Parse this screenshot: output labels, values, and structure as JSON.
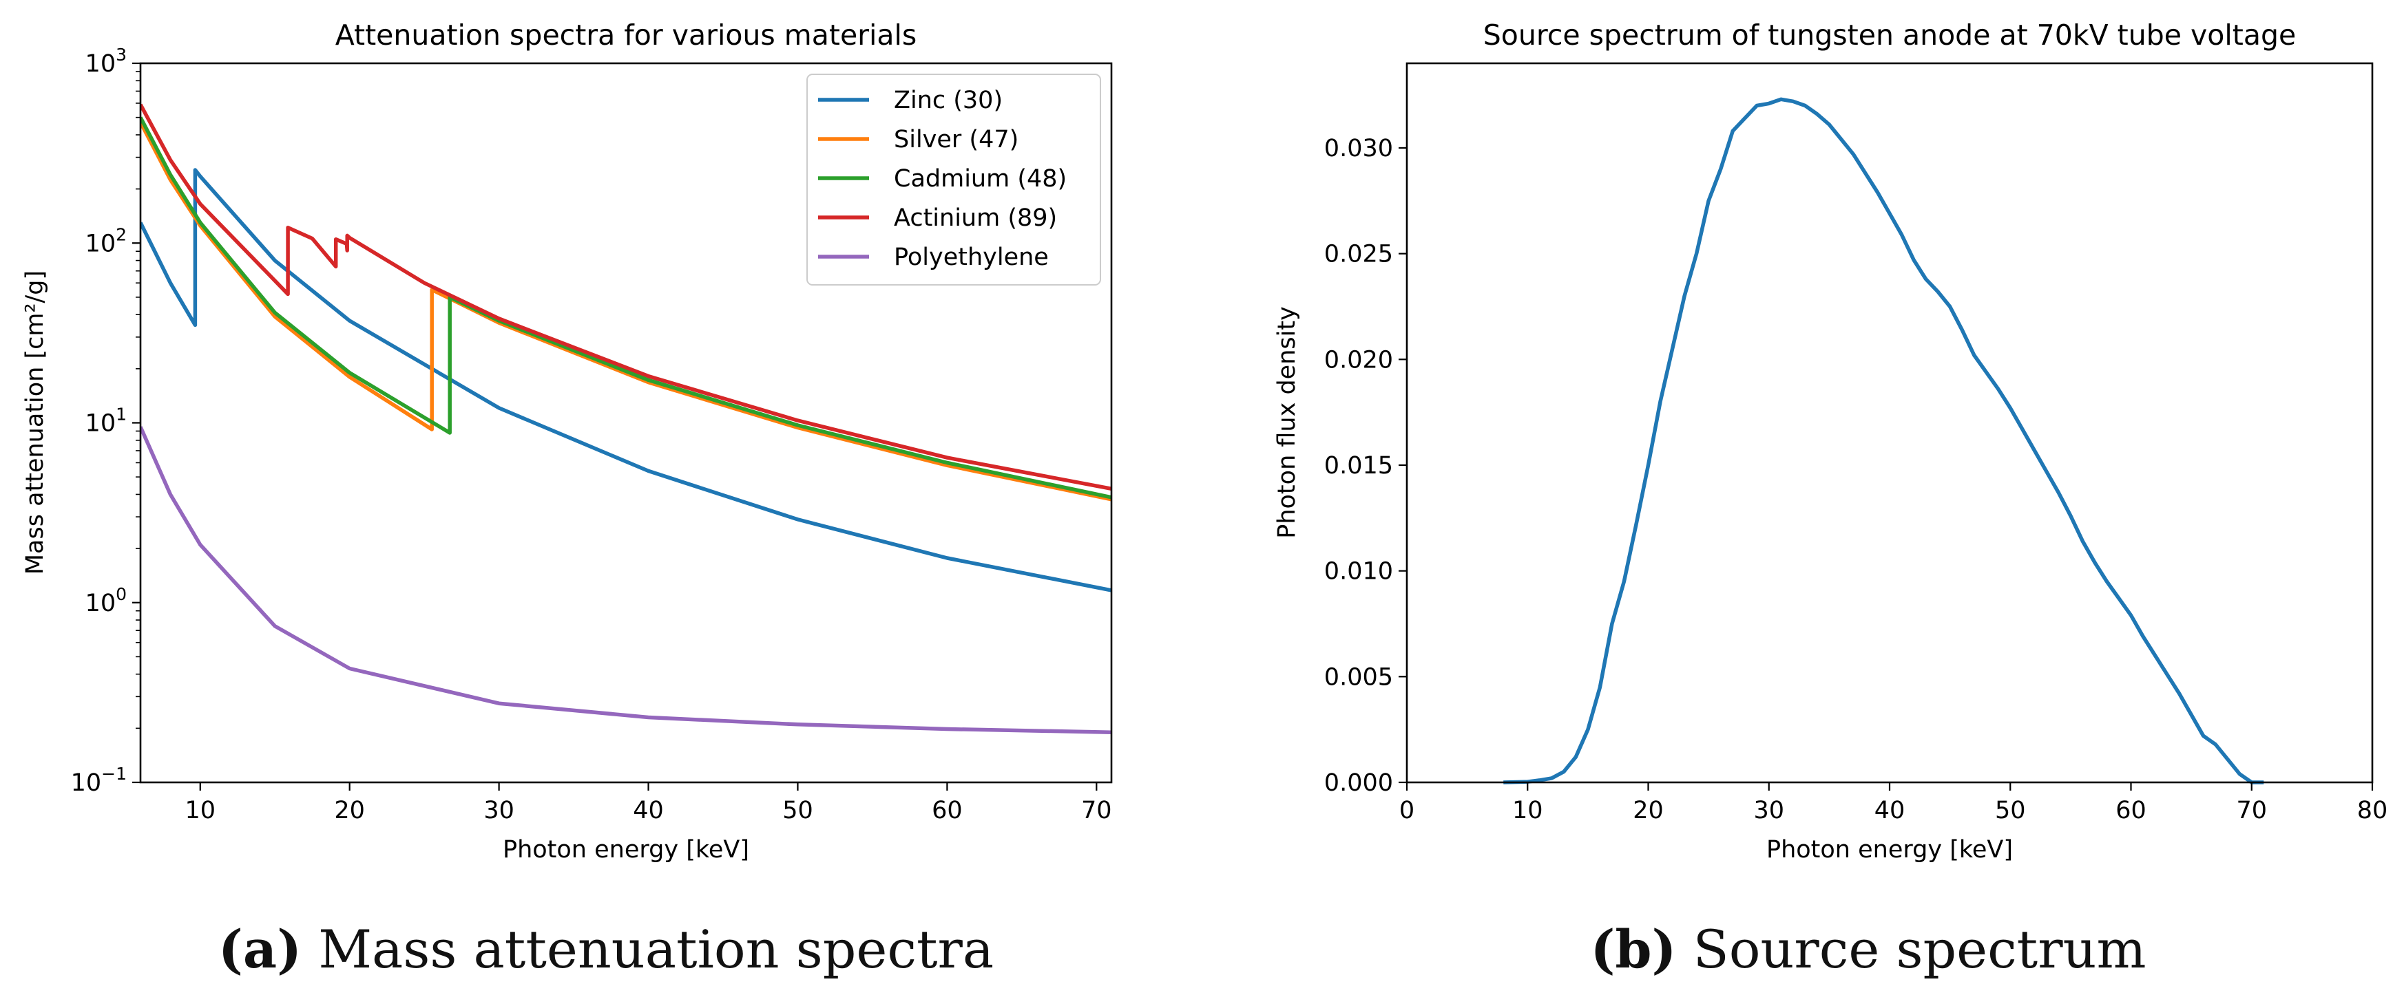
{
  "chart_data": [
    {
      "type": "line",
      "title": "Attenuation spectra for various materials",
      "xlabel": "Photon energy [keV]",
      "ylabel": "Mass attenuation [cm²/g]",
      "yscale": "log",
      "xlim": [
        6,
        71
      ],
      "ylim": [
        0.1,
        1000
      ],
      "xticks": [
        10,
        20,
        30,
        40,
        50,
        60,
        70
      ],
      "yticks": [
        {
          "value": 0.1,
          "base": "10",
          "exp": "−1"
        },
        {
          "value": 1,
          "base": "10",
          "exp": "0"
        },
        {
          "value": 10,
          "base": "10",
          "exp": "1"
        },
        {
          "value": 100,
          "base": "10",
          "exp": "2"
        },
        {
          "value": 1000,
          "base": "10",
          "exp": "3"
        }
      ],
      "legend_position": "top-right",
      "series": [
        {
          "name": "Zinc (30)",
          "color": "#1f77b4",
          "x": [
            6,
            8,
            9.66,
            9.66,
            10,
            15,
            20,
            30,
            40,
            50,
            60,
            71
          ],
          "y": [
            130,
            60,
            35,
            255,
            235,
            80,
            37,
            12.1,
            5.4,
            2.9,
            1.77,
            1.17
          ]
        },
        {
          "name": "Silver (47)",
          "color": "#ff7f0e",
          "x": [
            6,
            8,
            10,
            15,
            20,
            25.51,
            25.51,
            30,
            40,
            50,
            60,
            71
          ],
          "y": [
            470,
            225,
            125,
            39,
            18,
            9.2,
            55,
            36,
            16.8,
            9.4,
            5.8,
            3.75
          ]
        },
        {
          "name": "Cadmium (48)",
          "color": "#2ca02c",
          "x": [
            6,
            8,
            10,
            15,
            20,
            26.71,
            26.71,
            30,
            40,
            50,
            60,
            71
          ],
          "y": [
            500,
            240,
            130,
            41,
            19,
            8.8,
            50,
            37,
            17.3,
            9.7,
            6.0,
            3.85
          ]
        },
        {
          "name": "Actinium (89)",
          "color": "#d62728",
          "x": [
            6,
            8,
            10,
            15.87,
            15.87,
            17.5,
            19.08,
            19.08,
            19.8,
            19.84,
            19.84,
            20,
            25,
            30,
            40,
            50,
            60,
            71
          ],
          "y": [
            590,
            290,
            165,
            52,
            122,
            106,
            74,
            105,
            99,
            91,
            110,
            107,
            60,
            38,
            18.2,
            10.3,
            6.4,
            4.3
          ]
        },
        {
          "name": "Polyethylene",
          "color": "#9467bd",
          "x": [
            6,
            8,
            10,
            15,
            20,
            30,
            40,
            50,
            60,
            71
          ],
          "y": [
            9.5,
            4.0,
            2.1,
            0.74,
            0.43,
            0.275,
            0.23,
            0.21,
            0.198,
            0.19
          ]
        }
      ]
    },
    {
      "type": "line",
      "title": "Source spectrum of tungsten anode at 70kV tube voltage",
      "xlabel": "Photon energy [keV]",
      "ylabel": "Photon flux density",
      "xlim": [
        0,
        80
      ],
      "ylim": [
        0,
        0.034
      ],
      "xticks": [
        0,
        10,
        20,
        30,
        40,
        50,
        60,
        70,
        80
      ],
      "yticks": [
        "0.000",
        "0.005",
        "0.010",
        "0.015",
        "0.020",
        "0.025",
        "0.030"
      ],
      "series": [
        {
          "name": "Source spectrum",
          "color": "#1f77b4",
          "x": [
            8,
            10,
            11,
            12,
            13,
            14,
            15,
            16,
            17,
            18,
            19,
            20,
            21,
            22,
            23,
            24,
            25,
            26,
            27,
            28,
            29,
            30,
            31,
            32,
            33,
            34,
            35,
            36,
            37,
            38,
            39,
            40,
            41,
            42,
            43,
            44,
            45,
            46,
            47,
            48,
            49,
            50,
            51,
            52,
            53,
            54,
            55,
            56,
            57,
            58,
            59,
            60,
            61,
            62,
            63,
            64,
            65,
            66,
            67,
            68,
            69,
            70,
            71
          ],
          "y": [
            0.0,
            3e-05,
            0.0001,
            0.0002,
            0.0005,
            0.0012,
            0.0025,
            0.0045,
            0.0075,
            0.0095,
            0.0122,
            0.015,
            0.018,
            0.0205,
            0.023,
            0.025,
            0.0275,
            0.029,
            0.0308,
            0.0314,
            0.032,
            0.0321,
            0.0323,
            0.0322,
            0.032,
            0.0316,
            0.0311,
            0.0304,
            0.0297,
            0.0288,
            0.0279,
            0.0269,
            0.0259,
            0.0247,
            0.0238,
            0.0232,
            0.0225,
            0.0214,
            0.0202,
            0.0194,
            0.0186,
            0.0177,
            0.0167,
            0.0157,
            0.0147,
            0.0137,
            0.0126,
            0.0114,
            0.0104,
            0.0095,
            0.0087,
            0.0079,
            0.0069,
            0.006,
            0.0051,
            0.0042,
            0.0032,
            0.0022,
            0.0018,
            0.0011,
            0.0004,
            0.0,
            0.0
          ]
        }
      ]
    }
  ],
  "captions": {
    "a": {
      "label": "(a)",
      "text": " Mass attenuation spectra"
    },
    "b": {
      "label": "(b)",
      "text": " Source spectrum"
    }
  }
}
